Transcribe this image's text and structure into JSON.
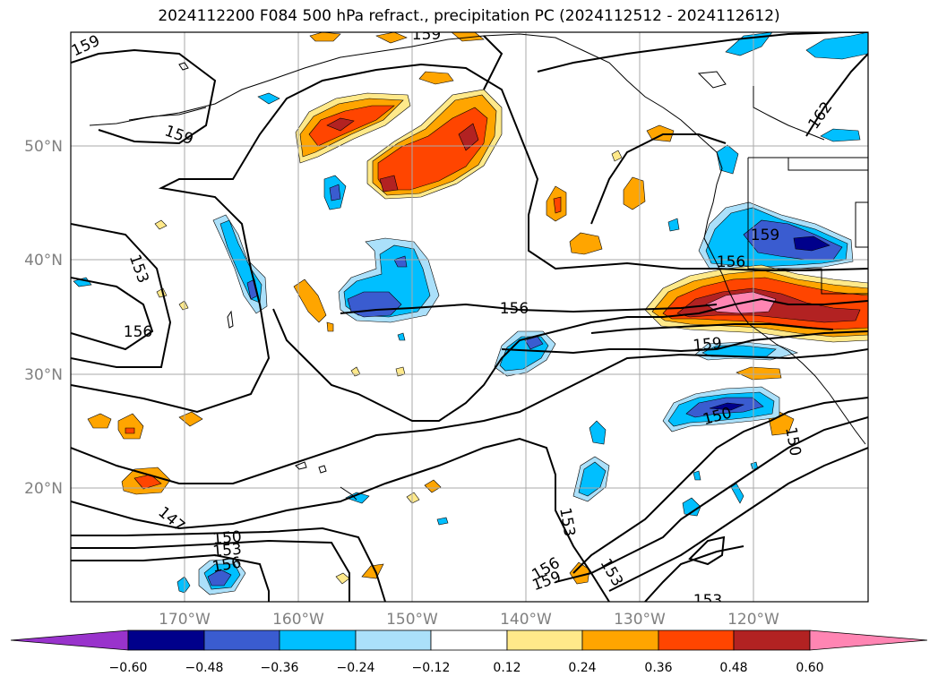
{
  "title": "2024112200 F084 500 hPa refract., precipitation PC (2024112512 - 2024112612)",
  "map": {
    "lon_ticks": [
      "170°W",
      "160°W",
      "150°W",
      "140°W",
      "130°W",
      "120°W"
    ],
    "lat_ticks": [
      "50°N",
      "40°N",
      "30°N",
      "20°N"
    ],
    "gridlines": true
  },
  "contour_labels": [
    "159",
    "159",
    "159",
    "162",
    "153",
    "156",
    "156",
    "156",
    "159",
    "159",
    "150",
    "150",
    "147",
    "150",
    "153",
    "156",
    "156",
    "159",
    "153",
    "153",
    "153"
  ],
  "colorbar": {
    "tick_labels": [
      "−0.60",
      "−0.48",
      "−0.36",
      "−0.24",
      "−0.12",
      "0.12",
      "0.24",
      "0.36",
      "0.48",
      "0.60"
    ],
    "colors": [
      "#9933cc",
      "#00008b",
      "#3a5cd0",
      "#00bfff",
      "#abe0fa",
      "#ffffff",
      "#ffe98a",
      "#ffa500",
      "#ff4500",
      "#b22222",
      "#ff85b3"
    ],
    "extend": "both"
  },
  "colors": {
    "black": "#000000",
    "grid": "#aaaaaa",
    "tick": "#808080"
  }
}
